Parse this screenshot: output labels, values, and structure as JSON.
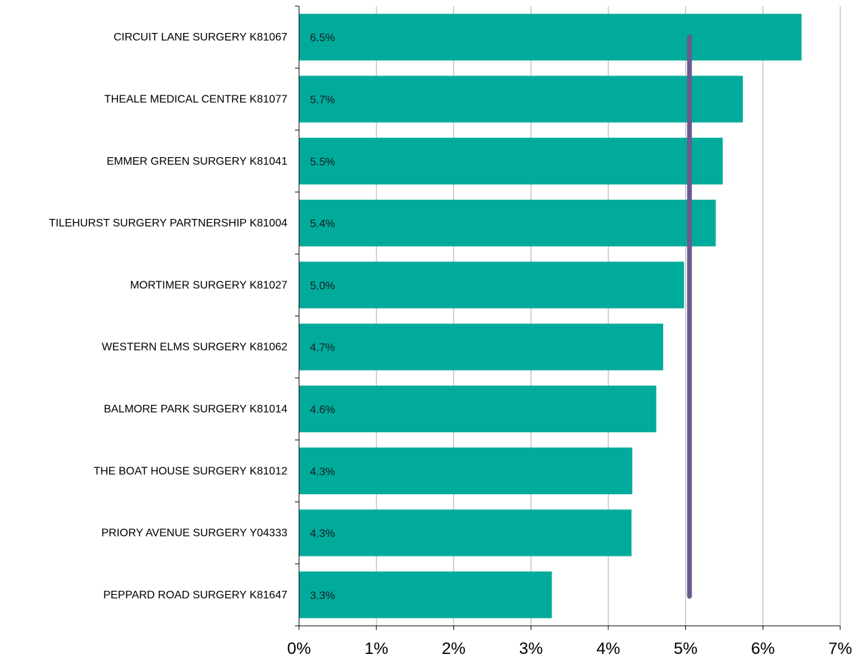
{
  "chart_data": {
    "type": "bar",
    "orientation": "horizontal",
    "categories": [
      "CIRCUIT LANE SURGERY K81067",
      "THEALE MEDICAL CENTRE K81077",
      "EMMER GREEN SURGERY K81041",
      "TILEHURST SURGERY PARTNERSHIP K81004",
      "MORTIMER SURGERY K81027",
      "WESTERN ELMS SURGERY K81062",
      "BALMORE PARK SURGERY K81014",
      "THE BOAT HOUSE SURGERY K81012",
      "PRIORY AVENUE SURGERY Y04333",
      "PEPPARD ROAD SURGERY K81647"
    ],
    "values": [
      6.5,
      5.74,
      5.48,
      5.39,
      4.98,
      4.71,
      4.62,
      4.31,
      4.3,
      3.27
    ],
    "data_labels": [
      "6.5%",
      "5.7%",
      "5.5%",
      "5.4%",
      "5.0%",
      "4.7%",
      "4.6%",
      "4.3%",
      "4.3%",
      "3.3%"
    ],
    "xlim": [
      0,
      7
    ],
    "x_ticks": [
      0,
      1,
      2,
      3,
      4,
      5,
      6,
      7
    ],
    "x_tick_labels": [
      "0%",
      "1%",
      "2%",
      "3%",
      "4%",
      "5%",
      "6%",
      "7%"
    ],
    "reference_line": {
      "value": 5.05,
      "color": "#6a5a90"
    },
    "grid": "vertical",
    "bar_color": "#00ab9b",
    "title": "",
    "xlabel": "",
    "ylabel": ""
  }
}
